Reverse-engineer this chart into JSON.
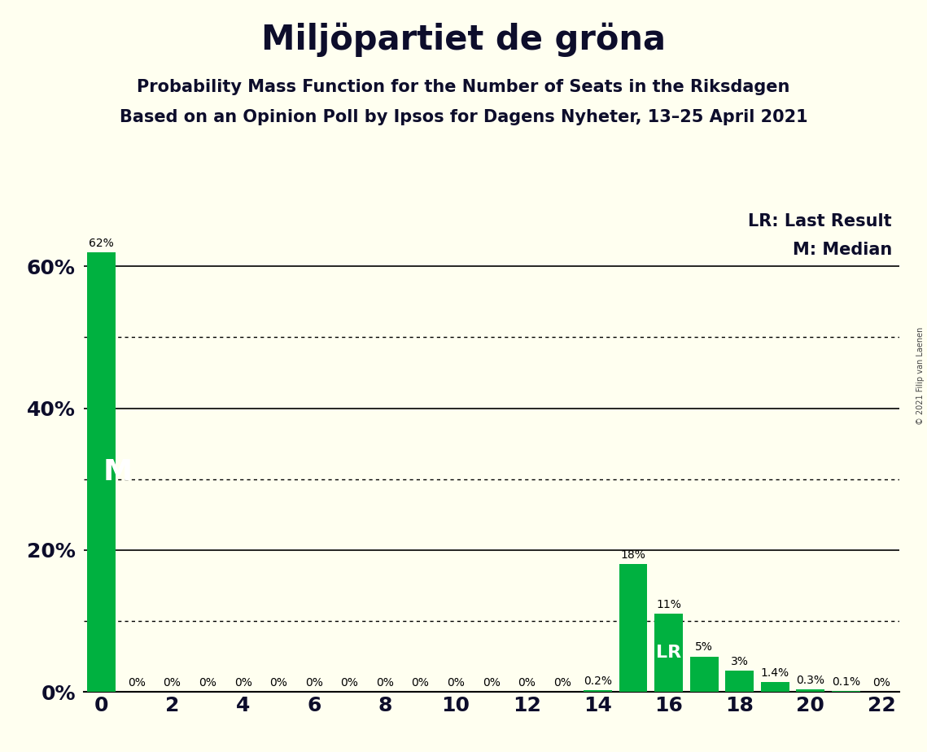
{
  "title": "Miljöpartiet de gröna",
  "subtitle1": "Probability Mass Function for the Number of Seats in the Riksdagen",
  "subtitle2": "Based on an Opinion Poll by Ipsos for Dagens Nyheter, 13–25 April 2021",
  "copyright_text": "© 2021 Filip van Laenen",
  "seats": [
    0,
    1,
    2,
    3,
    4,
    5,
    6,
    7,
    8,
    9,
    10,
    11,
    12,
    13,
    14,
    15,
    16,
    17,
    18,
    19,
    20,
    21,
    22
  ],
  "probabilities": [
    62,
    0,
    0,
    0,
    0,
    0,
    0,
    0,
    0,
    0,
    0,
    0,
    0,
    0,
    0.2,
    18,
    11,
    5,
    3,
    1.4,
    0.3,
    0.1,
    0
  ],
  "bar_color": "#00b140",
  "background_color": "#fffff0",
  "median_seat": 0,
  "lr_seat": 16,
  "median_label": "M",
  "lr_label": "LR",
  "legend_lr": "LR: Last Result",
  "legend_m": "M: Median",
  "ytick_positions": [
    0,
    20,
    40,
    60
  ],
  "ytick_labels": [
    "0%",
    "20%",
    "40%",
    "60%"
  ],
  "solid_lines": [
    20,
    40,
    60
  ],
  "dotted_lines": [
    10,
    30,
    50
  ],
  "xlim": [
    -0.5,
    22.5
  ],
  "ylim": [
    0,
    70
  ],
  "bar_label_fontsize": 10,
  "title_fontsize": 30,
  "subtitle_fontsize": 15,
  "axis_tick_fontsize": 18,
  "legend_fontsize": 15
}
